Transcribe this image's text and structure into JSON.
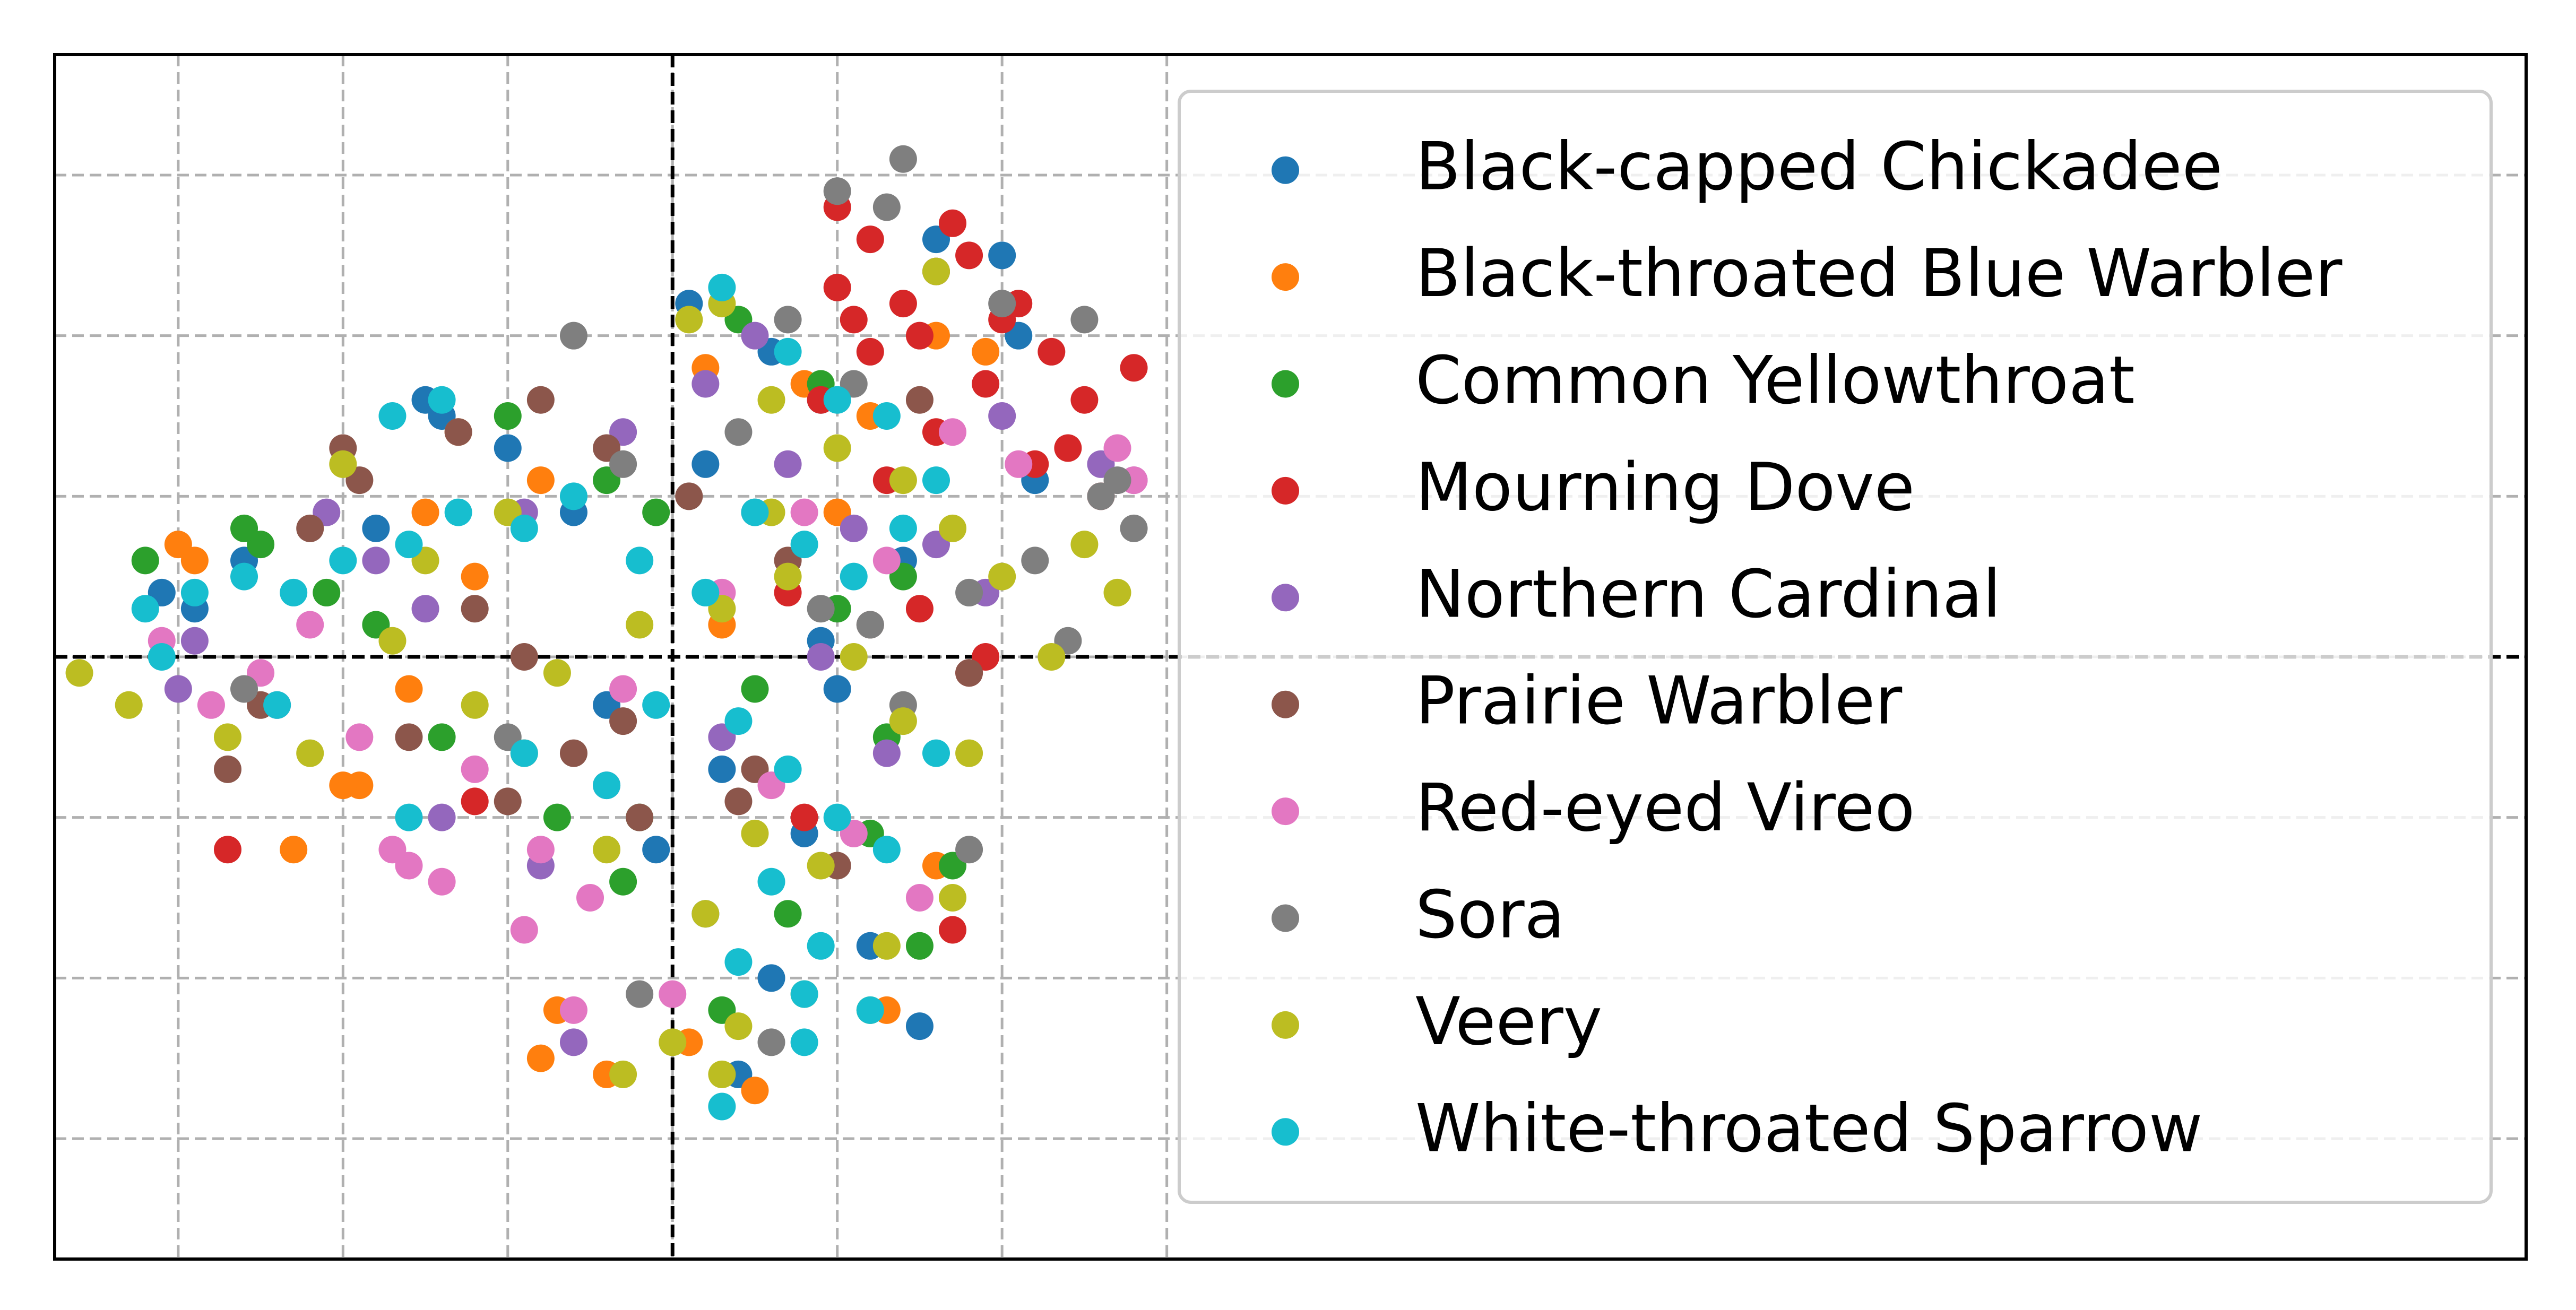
{
  "chart_data": {
    "type": "scatter",
    "title": "",
    "xlabel": "",
    "ylabel": "",
    "xlim": [
      -3.75,
      11.25
    ],
    "ylim": [
      -3.75,
      3.75
    ],
    "x_gridlines": [
      -3,
      -2,
      -1,
      0,
      1,
      2,
      3
    ],
    "y_gridlines": [
      -3,
      -2,
      -1,
      0,
      1,
      2,
      3
    ],
    "zero_lines": {
      "x": 0,
      "y": 0,
      "color": "#000000"
    },
    "tick_labels_visible": false,
    "grid": true,
    "legend_position": "upper right",
    "series": [
      {
        "name": "Black-capped Chickadee",
        "color": "#1f77b4",
        "x": [
          -1.5,
          -1.4,
          -2.9,
          -3.1,
          -2.6,
          -1.0,
          -0.6,
          0.2,
          0.6,
          0.9,
          1.6,
          2.1,
          2.2,
          1.4,
          0.9,
          1.0,
          0.3,
          -0.1,
          0.2,
          0.6,
          1.2,
          1.5,
          0.4,
          -0.4,
          -1.8,
          0.1,
          0.8,
          2.0
        ],
        "y": [
          1.6,
          1.5,
          0.3,
          0.4,
          0.6,
          1.3,
          0.9,
          1.2,
          1.9,
          1.6,
          2.6,
          2.0,
          1.1,
          0.6,
          0.1,
          -0.2,
          -0.7,
          -1.2,
          -1.6,
          -2.0,
          -1.8,
          -2.3,
          -2.6,
          -0.3,
          0.8,
          2.2,
          -1.1,
          2.5
        ]
      },
      {
        "name": "Black-throated Blue Warbler",
        "color": "#ff7f0e",
        "x": [
          -2.3,
          -1.9,
          -1.3,
          -0.8,
          -1.5,
          0.2,
          0.8,
          1.2,
          1.6,
          1.9,
          -0.7,
          -0.8,
          -0.4,
          0.1,
          0.5,
          1.3,
          1.6,
          -2.0,
          -1.6,
          -2.9,
          -3.0,
          -1.2,
          -0.9,
          0.3,
          1.0
        ],
        "y": [
          -1.2,
          -0.8,
          1.4,
          1.1,
          0.9,
          1.8,
          1.7,
          1.5,
          2.0,
          1.9,
          -2.2,
          -2.5,
          -2.6,
          -2.4,
          -2.7,
          -2.2,
          -1.3,
          -0.8,
          -0.2,
          0.6,
          0.7,
          0.5,
          -0.6,
          0.2,
          0.9
        ]
      },
      {
        "name": "Common Yellowthroat",
        "color": "#2ca02c",
        "x": [
          -2.5,
          -2.1,
          -1.0,
          -0.4,
          -0.2,
          0.5,
          1.0,
          1.3,
          1.7,
          1.5,
          1.2,
          0.7,
          -0.3,
          -0.7,
          -1.4,
          -2.6,
          -1.8,
          0.9,
          0.4,
          -0.1,
          0.3,
          -3.2,
          1.4
        ],
        "y": [
          0.7,
          0.4,
          1.5,
          1.1,
          -1.0,
          -0.2,
          0.3,
          -0.5,
          -1.3,
          -1.8,
          -1.1,
          -1.6,
          -1.4,
          -1.0,
          -0.5,
          0.8,
          0.2,
          1.7,
          2.1,
          0.9,
          -2.2,
          0.6,
          0.5
        ]
      },
      {
        "name": "Mourning Dove",
        "color": "#d62728",
        "x": [
          1.0,
          1.2,
          1.6,
          1.4,
          1.8,
          2.0,
          2.3,
          1.9,
          1.5,
          1.2,
          1.0,
          1.7,
          2.1,
          2.5,
          2.8,
          2.4,
          1.3,
          0.9,
          1.6,
          2.2,
          1.1,
          2.6,
          1.5,
          1.8,
          0.7,
          1.9,
          -1.2,
          -2.7,
          0.8,
          1.7
        ],
        "y": [
          2.8,
          2.6,
          2.4,
          2.2,
          2.5,
          2.1,
          1.9,
          1.7,
          2.0,
          1.9,
          2.3,
          2.7,
          2.2,
          1.6,
          1.8,
          1.3,
          1.1,
          1.6,
          1.4,
          1.2,
          2.1,
          1.0,
          0.3,
          -0.1,
          0.4,
          0.0,
          -0.9,
          -1.2,
          -1.0,
          -1.7
        ]
      },
      {
        "name": "Northern Cardinal",
        "color": "#9467bd",
        "x": [
          -1.8,
          -1.5,
          -0.9,
          -0.3,
          0.2,
          0.7,
          1.1,
          1.6,
          1.9,
          2.6,
          2.8,
          -2.9,
          -3.0,
          -2.4,
          -0.8,
          -0.4,
          0.3,
          1.3,
          0.9,
          -1.4,
          -0.6,
          2.0,
          0.5,
          -2.1
        ],
        "y": [
          0.6,
          0.3,
          0.9,
          1.4,
          1.7,
          1.2,
          0.8,
          0.7,
          0.4,
          1.2,
          1.1,
          0.1,
          -0.2,
          -0.3,
          -1.3,
          -0.8,
          -0.5,
          -0.6,
          0.0,
          -1.0,
          -2.4,
          1.5,
          2.0,
          0.9
        ]
      },
      {
        "name": "Prairie Warbler",
        "color": "#8c564b",
        "x": [
          -2.2,
          -1.9,
          -1.3,
          -0.8,
          -0.4,
          0.1,
          0.7,
          1.2,
          1.8,
          -0.6,
          -1.0,
          -1.6,
          -2.5,
          -0.2,
          0.5,
          1.0,
          -1.2,
          -0.9,
          -0.3,
          0.4,
          -2.0,
          -2.7,
          1.5
        ],
        "y": [
          0.8,
          1.1,
          1.4,
          1.6,
          1.3,
          1.0,
          0.6,
          0.2,
          -0.1,
          -0.6,
          -0.9,
          -0.5,
          -0.3,
          -1.0,
          -0.7,
          -1.3,
          0.3,
          0.0,
          -0.4,
          -0.9,
          1.3,
          -0.7,
          1.6
        ]
      },
      {
        "name": "Red-eyed Vireo",
        "color": "#e377c2",
        "x": [
          -2.8,
          -2.5,
          -1.9,
          -1.6,
          -1.2,
          -0.8,
          -0.3,
          0.3,
          0.8,
          1.3,
          1.7,
          2.1,
          2.7,
          2.8,
          -1.7,
          -1.4,
          -0.9,
          -0.5,
          0.6,
          1.1,
          1.5,
          0.0,
          -0.6,
          -2.2,
          -3.1
        ],
        "y": [
          -0.3,
          -0.1,
          -0.5,
          -1.3,
          -0.7,
          -1.2,
          -0.2,
          0.4,
          0.9,
          0.6,
          1.4,
          1.2,
          1.3,
          1.1,
          -1.2,
          -1.4,
          -1.7,
          -1.5,
          -0.8,
          -1.1,
          -1.5,
          -2.1,
          -2.2,
          0.2,
          0.1
        ]
      },
      {
        "name": "Sora",
        "color": "#7f7f7f",
        "x": [
          1.4,
          1.3,
          1.0,
          1.6,
          2.0,
          2.5,
          2.6,
          2.8,
          2.7,
          2.2,
          1.8,
          1.2,
          0.4,
          -0.6,
          -0.3,
          0.5,
          0.9,
          1.4,
          -1.0,
          -2.6,
          -0.2,
          0.6,
          2.4,
          0.7,
          1.8,
          1.1
        ],
        "y": [
          3.1,
          2.8,
          2.9,
          2.4,
          2.2,
          2.1,
          1.0,
          0.8,
          1.1,
          0.6,
          0.4,
          0.2,
          1.4,
          2.0,
          1.2,
          0.9,
          0.3,
          -0.3,
          -0.5,
          -0.2,
          -2.1,
          -2.4,
          0.1,
          2.1,
          -1.2,
          1.7
        ]
      },
      {
        "name": "Veery",
        "color": "#bcbd22",
        "x": [
          0.1,
          0.3,
          0.6,
          1.0,
          1.4,
          1.7,
          2.0,
          2.5,
          2.7,
          0.3,
          0.7,
          1.1,
          1.4,
          1.8,
          -0.2,
          -0.7,
          -1.2,
          -1.7,
          -2.2,
          -2.7,
          -3.3,
          -3.6,
          -0.4,
          0.2,
          0.5,
          0.9,
          1.3,
          1.7,
          0.0,
          0.4,
          0.8,
          1.2,
          -1.0,
          -1.5,
          -2.0,
          2.3,
          1.6,
          0.6,
          -0.3,
          0.3
        ],
        "y": [
          2.1,
          2.2,
          1.6,
          1.3,
          1.1,
          0.8,
          0.5,
          0.7,
          0.4,
          0.3,
          0.5,
          0.0,
          -0.4,
          -0.6,
          0.2,
          -0.1,
          -0.3,
          0.1,
          -0.6,
          -0.5,
          -0.3,
          -0.1,
          -1.2,
          -1.6,
          -1.1,
          -1.3,
          -1.8,
          -1.5,
          -2.4,
          -2.3,
          -2.1,
          -2.2,
          0.9,
          0.6,
          1.2,
          0.0,
          2.4,
          0.9,
          -2.6,
          -2.6
        ]
      },
      {
        "name": "White-throated Sparrow",
        "color": "#17becf",
        "x": [
          -3.2,
          -2.9,
          -2.6,
          -2.3,
          -2.0,
          -1.6,
          -1.3,
          -0.9,
          -0.6,
          -0.2,
          0.3,
          0.7,
          1.0,
          1.3,
          1.6,
          1.4,
          1.1,
          0.8,
          0.5,
          0.2,
          0.4,
          0.7,
          1.0,
          1.3,
          0.6,
          0.9,
          -0.4,
          -0.9,
          -1.6,
          -2.4,
          -3.1,
          0.4,
          0.8,
          1.2,
          1.6,
          -1.7,
          -1.4,
          -0.1,
          0.3,
          0.8
        ],
        "y": [
          0.3,
          0.4,
          0.5,
          0.4,
          0.6,
          0.7,
          0.9,
          0.8,
          1.0,
          0.6,
          2.3,
          1.9,
          1.6,
          1.5,
          1.1,
          0.8,
          0.5,
          0.7,
          0.9,
          0.4,
          -0.4,
          -0.7,
          -1.0,
          -1.2,
          -1.4,
          -1.8,
          -0.8,
          -0.6,
          -1.0,
          -0.3,
          0.0,
          -1.9,
          -2.1,
          -2.2,
          -0.6,
          1.5,
          1.6,
          -0.3,
          -2.8,
          -2.4
        ]
      }
    ]
  }
}
